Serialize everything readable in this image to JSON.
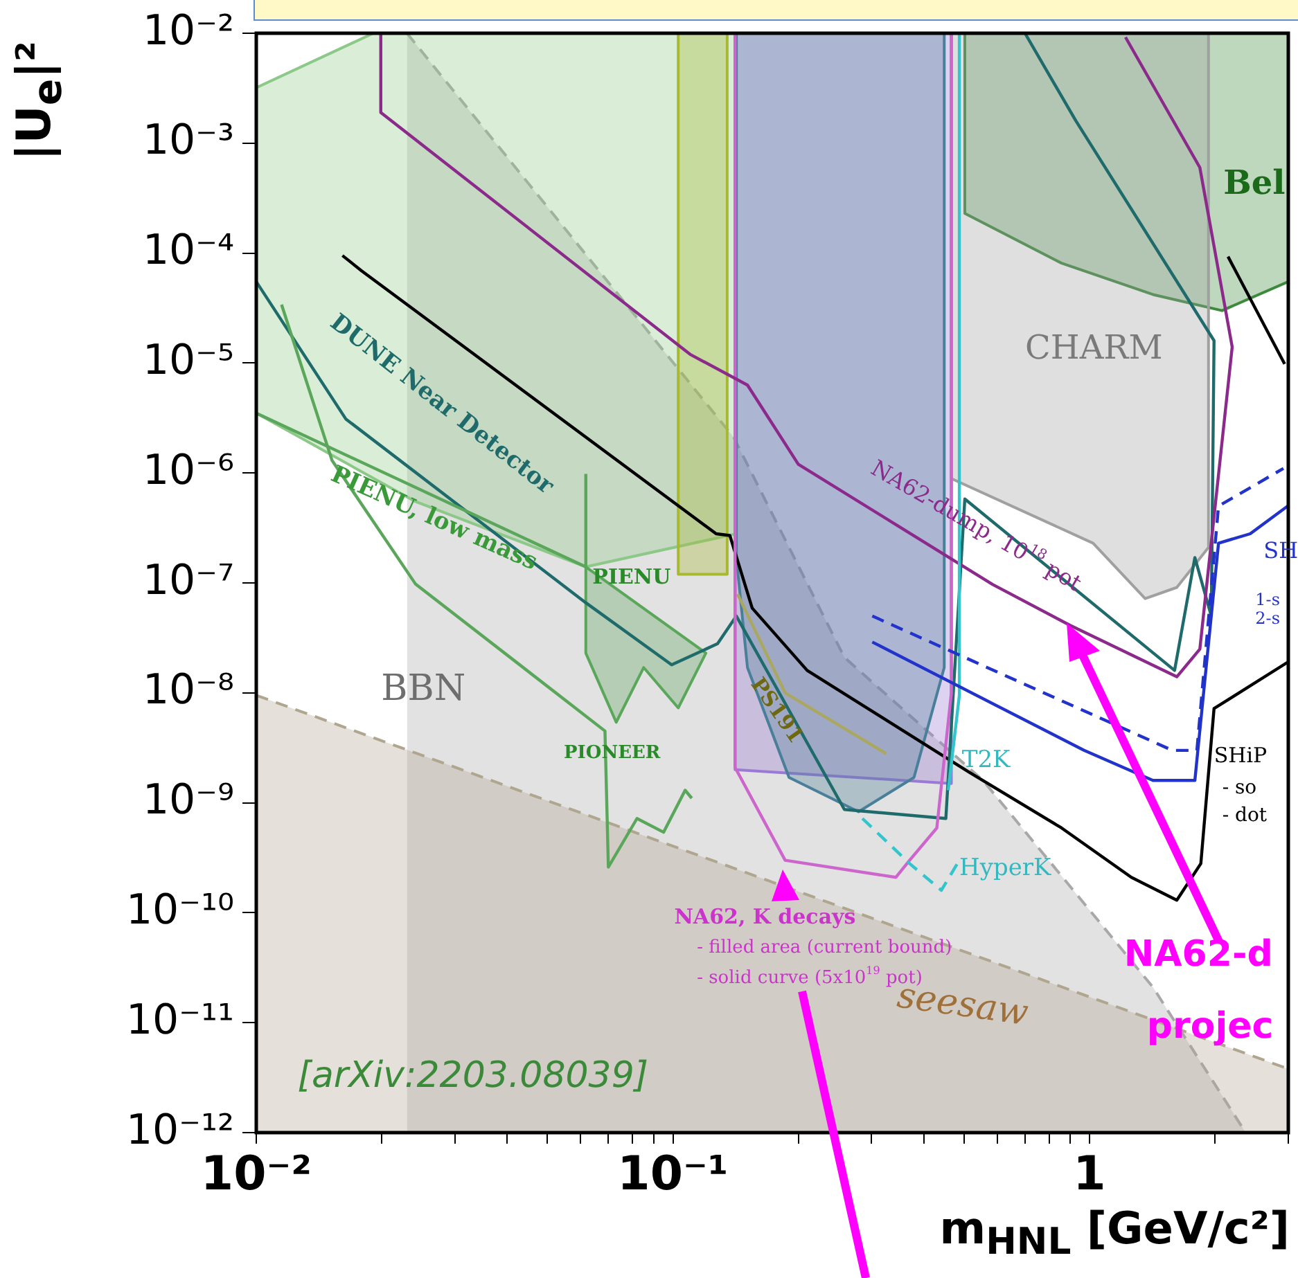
{
  "chart_data": {
    "type": "line",
    "xlabel": "m$_{HNL}$ [GeV/c²]",
    "ylabel": "|U$_{e}$|²",
    "log": "xy",
    "xlim": [
      0.01,
      3
    ],
    "ylim": [
      1e-12,
      0.01
    ],
    "xticks": [
      {
        "value": 0.01,
        "label": "10⁻²"
      },
      {
        "value": 0.02,
        "label": null
      },
      {
        "value": 0.03,
        "label": null
      },
      {
        "value": 0.04,
        "label": null
      },
      {
        "value": 0.05,
        "label": null
      },
      {
        "value": 0.06,
        "label": null
      },
      {
        "value": 0.07,
        "label": null
      },
      {
        "value": 0.08,
        "label": null
      },
      {
        "value": 0.09,
        "label": null
      },
      {
        "value": 0.1,
        "label": "10⁻¹"
      },
      {
        "value": 0.2,
        "label": null
      },
      {
        "value": 0.3,
        "label": null
      },
      {
        "value": 0.4,
        "label": null
      },
      {
        "value": 0.5,
        "label": null
      },
      {
        "value": 0.6,
        "label": null
      },
      {
        "value": 0.7,
        "label": null
      },
      {
        "value": 0.8,
        "label": null
      },
      {
        "value": 0.9,
        "label": null
      },
      1,
      {
        "value": 2,
        "label": null
      },
      {
        "value": 3,
        "label": null
      }
    ],
    "yticks": [
      {
        "value": 1e-12,
        "label": "10⁻¹²"
      },
      {
        "value": 1e-11,
        "label": "10⁻¹¹"
      },
      {
        "value": 1e-10,
        "label": "10⁻¹⁰"
      },
      {
        "value": 1e-09,
        "label": "10⁻⁹"
      },
      {
        "value": 1e-08,
        "label": "10⁻⁸"
      },
      {
        "value": 1e-07,
        "label": "10⁻⁷"
      },
      {
        "value": 1e-06,
        "label": "10⁻⁶"
      },
      {
        "value": 1e-05,
        "label": "10⁻⁵"
      },
      {
        "value": 0.0001,
        "label": "10⁻⁴"
      },
      {
        "value": 0.001,
        "label": "10⁻³"
      },
      {
        "value": 0.01,
        "label": "10⁻²"
      }
    ],
    "series": [
      {
        "type": "area",
        "color": "#a8a8a8",
        "line_style": "dashed",
        "x": [
          0.023,
          0.14,
          0.258,
          0.555,
          1.42,
          2.37
        ],
        "values": [
          0.01,
          2.1e-06,
          2.1e-08,
          1.6e-09,
          2.1e-11,
          1e-12
        ]
      },
      {
        "type": "area",
        "color": "#b0a690",
        "line_style": "dashed",
        "x": [
          0.01,
          3
        ],
        "values": [
          9.5e-09,
          3.8e-12
        ]
      },
      {
        "type": "area",
        "color": "#8cc888",
        "x": [
          0.01,
          0.0191,
          0.142,
          0.142,
          0.0618,
          0.0241,
          0.01,
          0.01
        ],
        "values": [
          0.0032,
          0.01,
          0.01,
          2.8e-07,
          1.4e-07,
          5.5e-07,
          3.5e-06,
          0.0032
        ]
      },
      {
        "type": "area",
        "color": "#3d8a3d",
        "x": [
          0.502,
          0.502,
          0.857,
          1.42,
          2.08,
          3,
          3,
          0.502
        ],
        "values": [
          0.01,
          0.00023,
          8.1e-05,
          4.2e-05,
          3e-05,
          5.5e-05,
          0.01,
          0.01
        ]
      },
      {
        "type": "area",
        "color": "#a0a0a0",
        "x": [
          0.466,
          0.466,
          1.02,
          1.36,
          1.62,
          1.93,
          1.93,
          0.466
        ],
        "values": [
          0.01,
          8.9e-07,
          2.3e-07,
          7.2e-08,
          9.1e-08,
          2.1e-07,
          0.01,
          0.01
        ]
      },
      {
        "type": "area",
        "color": "#5aa65a",
        "x": [
          0.0618,
          0.0618,
          0.0731,
          0.0851,
          0.103,
          0.12,
          0.0618
        ],
        "values": [
          1.4e-07,
          2.3e-08,
          5.4e-09,
          1.7e-08,
          7.3e-09,
          2.3e-08,
          1.4e-07
        ]
      },
      {
        "type": "area",
        "color": "#a8b830",
        "x": [
          0.103,
          0.135,
          0.135,
          0.103,
          0.103
        ],
        "values": [
          0.01,
          0.01,
          1.2e-07,
          1.2e-07,
          0.01
        ]
      },
      {
        "type": "area",
        "color": "#9a7ad6",
        "x": [
          0.141,
          0.466,
          0.466,
          0.141,
          0.141
        ],
        "values": [
          0.01,
          0.01,
          1.5e-09,
          2e-09,
          0.01
        ]
      },
      {
        "type": "area",
        "color": "#4a7f99",
        "x": [
          0.142,
          0.448,
          0.448,
          0.379,
          0.279,
          0.19,
          0.151,
          0.142,
          0.142
        ],
        "values": [
          0.01,
          0.01,
          1.7e-08,
          1.7e-09,
          8.3e-10,
          1.7e-09,
          1.7e-08,
          1.7e-07,
          0.01
        ]
      },
      {
        "type": "line",
        "color": "#aaa860",
        "x": [
          0.143,
          0.186,
          0.325
        ],
        "values": [
          7.9e-08,
          1e-08,
          2.8e-09
        ]
      },
      {
        "type": "line",
        "color": "#000000",
        "x": [
          0.0161,
          0.0179,
          0.127,
          0.137,
          0.155,
          0.21,
          0.514,
          0.857,
          1.26,
          1.62,
          1.85,
          1.99,
          2.99
        ],
        "values": [
          9.5e-05,
          6.9e-05,
          2.8e-07,
          2.7e-07,
          5.9e-08,
          1.6e-08,
          1.9e-09,
          5.9e-10,
          2.1e-10,
          1.3e-10,
          2.8e-10,
          7.2e-09,
          1.9e-08
        ]
      },
      {
        "type": "line",
        "color": "#000000",
        "x": [
          2.15,
          2.94
        ],
        "values": [
          9.3e-05,
          9.8e-06
        ]
      },
      {
        "type": "line",
        "color": "#1f6b6b",
        "x": [
          0.01,
          0.0164,
          0.0618,
          0.0993,
          0.128,
          0.142,
          0.258,
          0.452,
          0.502,
          1.6,
          1.79,
          1.96,
          1.99,
          0.927,
          0.7
        ],
        "values": [
          5.5e-05,
          3.1e-06,
          6.6e-08,
          1.8e-08,
          2.8e-08,
          5e-08,
          8.7e-10,
          7.2e-10,
          5.8e-07,
          1.6e-08,
          1.7e-07,
          5e-08,
          1.6e-05,
          0.0016,
          0.01
        ]
      },
      {
        "type": "line",
        "color": "#5aa65a",
        "x": [
          0.01,
          0.0618,
          0.0618
        ],
        "values": [
          3.5e-06,
          1.4e-07,
          9.8e-07
        ]
      },
      {
        "type": "line",
        "color": "#5aa65a",
        "x": [
          0.0115,
          0.0152,
          0.0241,
          0.0687,
          0.07,
          0.082,
          0.095,
          0.107,
          0.111
        ],
        "values": [
          3.4e-05,
          1.3e-06,
          9.8e-08,
          4.5e-09,
          2.6e-10,
          7.2e-10,
          5.4e-10,
          1.3e-09,
          1.1e-09
        ]
      },
      {
        "type": "line",
        "color": "#cc66cc",
        "x": [
          0.141,
          0.141,
          0.186,
          0.343,
          0.37,
          0.43,
          0.466,
          0.466
        ],
        "values": [
          0.01,
          2.1e-09,
          3e-10,
          2.1e-10,
          3e-10,
          5.9e-10,
          1e-08,
          0.01
        ]
      },
      {
        "type": "line",
        "color": "#8b2a8b",
        "x": [
          0.0199,
          0.0199,
          0.11,
          0.151,
          0.2,
          0.585,
          0.9,
          1.62,
          1.84,
          2.2,
          1.84,
          1.22
        ],
        "values": [
          0.01,
          0.0019,
          1.2e-05,
          6.3e-06,
          1.2e-06,
          9.7e-08,
          4.1e-08,
          1.4e-08,
          2.5e-08,
          1.4e-05,
          0.0006,
          0.0092
        ]
      },
      {
        "type": "line",
        "color": "#33c4cc",
        "x": [
          0.487,
          0.487,
          0.458
        ],
        "values": [
          0.01,
          9.5e-09,
          1.3e-09
        ]
      },
      {
        "type": "line",
        "color": "#33c4cc",
        "line_style": "dashed",
        "x": [
          0.285,
          0.37,
          0.441,
          0.487
        ],
        "values": [
          7.2e-10,
          2.8e-10,
          1.6e-10,
          3e-10
        ]
      },
      {
        "type": "line",
        "color": "#2233cc",
        "x": [
          0.301,
          0.97,
          1.42,
          1.79,
          2.04,
          2.43,
          2.99
        ],
        "values": [
          2.9e-08,
          3e-09,
          1.6e-09,
          1.6e-09,
          2.3e-07,
          2.8e-07,
          5e-07
        ]
      },
      {
        "type": "line",
        "color": "#2233cc",
        "line_style": "dashed",
        "x": [
          0.301,
          1.58,
          1.81,
          2.04,
          2.92
        ],
        "values": [
          5e-08,
          3e-09,
          3e-09,
          5e-07,
          1.1e-06
        ]
      }
    ],
    "annotations": [
      "BBN",
      "CHARM",
      "DUNE Near Detector",
      {
        "text": "PIENU, low mass",
        "x": 0.0152,
        "y": 9.8e-07
      },
      {
        "text": "PIENU",
        "x": 0.0641,
        "y": 1.1e-07
      },
      "PIONEER",
      "PS191",
      {
        "text": "T2K",
        "x": 0.494,
        "y": 2.4e-09
      },
      {
        "text": "HyperK",
        "x": 0.487,
        "y": 2.5e-10
      },
      "NA62-dump, 10$^{18}$ pot",
      "NA62, K decays",
      "- filled area (current bound)",
      "- solid curve (5x10$^{19}$ pot)",
      "seesaw",
      "[arXiv:2203.08039]",
      {
        "text": "NA62-d",
        "x": 1.21,
        "y": 4e-11
      },
      "projec",
      {
        "text": "SHiP",
        "x": 1.99,
        "y": 2.6e-09
      },
      "- so",
      "- dot",
      "SH",
      "1-s",
      "2-s",
      "Bel"
    ]
  }
}
